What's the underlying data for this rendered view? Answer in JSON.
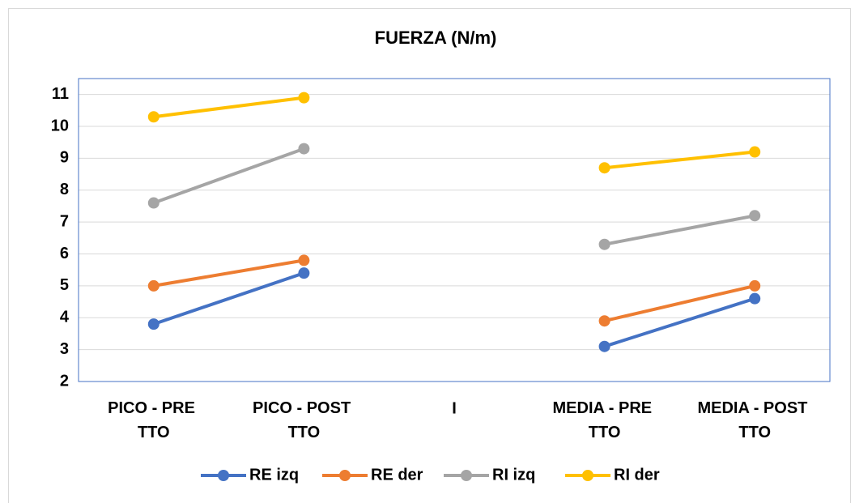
{
  "chart_data": {
    "type": "line",
    "title": "FUERZA (N/m)",
    "categories": [
      "PICO - PRE TTO",
      "PICO - POST TTO",
      "I",
      "MEDIA - PRE TTO",
      "MEDIA - POST TTO"
    ],
    "series": [
      {
        "name": "RE izq",
        "color": "#4472c4",
        "values": [
          3.8,
          5.4,
          null,
          3.1,
          4.6
        ]
      },
      {
        "name": "RE der",
        "color": "#ed7d31",
        "values": [
          5.0,
          5.8,
          null,
          3.9,
          5.0
        ]
      },
      {
        "name": "RI izq",
        "color": "#a5a5a5",
        "values": [
          7.6,
          9.3,
          null,
          6.3,
          7.2
        ]
      },
      {
        "name": "RI der",
        "color": "#ffc000",
        "values": [
          10.3,
          10.9,
          null,
          8.7,
          9.2
        ]
      }
    ],
    "ylim": [
      2,
      11.5
    ],
    "yticks": [
      2,
      3,
      4,
      5,
      6,
      7,
      8,
      9,
      10,
      11
    ],
    "grid": true,
    "legend": "bottom"
  }
}
